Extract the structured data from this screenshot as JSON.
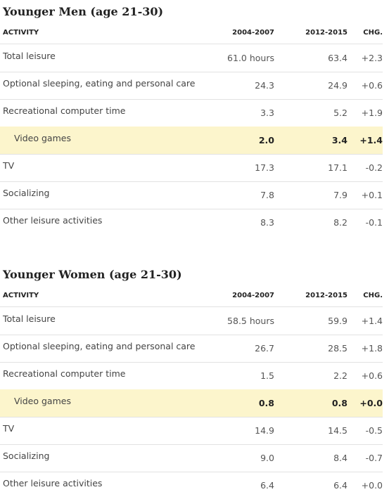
{
  "tables": [
    {
      "title": "Younger Men (age 21-30)",
      "columns": [
        "ACTIVITY",
        "2004-2007",
        "2012-2015",
        "CHG."
      ],
      "highlight_row": 3,
      "rows": [
        [
          "Total leisure",
          "61.0 hours",
          "63.4",
          "+2.3"
        ],
        [
          "Optional sleeping, eating and personal care",
          "24.3",
          "24.9",
          "+0.6"
        ],
        [
          "Recreational computer time",
          "3.3",
          "5.2",
          "+1.9"
        ],
        [
          "Video games",
          "2.0",
          "3.4",
          "+1.4"
        ],
        [
          "TV",
          "17.3",
          "17.1",
          "-0.2"
        ],
        [
          "Socializing",
          "7.8",
          "7.9",
          "+0.1"
        ],
        [
          "Other leisure activities",
          "8.3",
          "8.2",
          "-0.1"
        ]
      ]
    },
    {
      "title": "Younger Women (age 21-30)",
      "columns": [
        "ACTIVITY",
        "2004-2007",
        "2012-2015",
        "CHG."
      ],
      "highlight_row": 3,
      "rows": [
        [
          "Total leisure",
          "58.5 hours",
          "59.9",
          "+1.4"
        ],
        [
          "Optional sleeping, eating and personal care",
          "26.7",
          "28.5",
          "+1.8"
        ],
        [
          "Recreational computer time",
          "1.5",
          "2.2",
          "+0.6"
        ],
        [
          "Video games",
          "0.8",
          "0.8",
          "+0.0"
        ],
        [
          "TV",
          "14.9",
          "14.5",
          "-0.5"
        ],
        [
          "Socializing",
          "9.0",
          "8.4",
          "-0.7"
        ],
        [
          "Other leisure activities",
          "6.4",
          "6.4",
          "+0.0"
        ]
      ]
    }
  ]
}
